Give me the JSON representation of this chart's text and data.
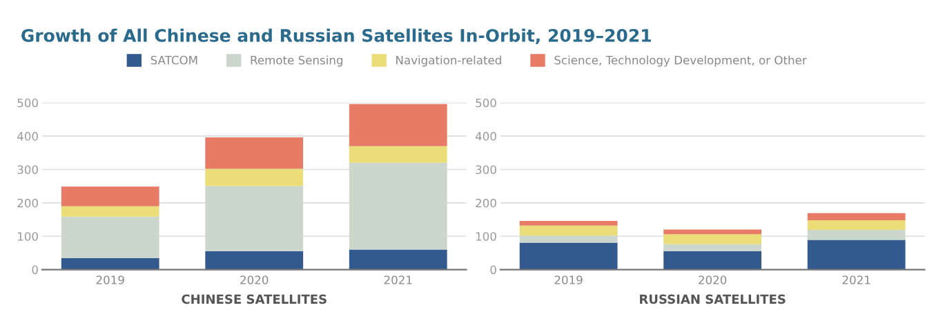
{
  "chart_data": [
    {
      "type": "bar",
      "title": "Growth of All Chinese and Russian Satellites In-Orbit, 2019–2021",
      "xlabel": "CHINESE SATELLITES",
      "stacked": true,
      "grid": "y",
      "legend": "top",
      "categories": [
        "2019",
        "2020",
        "2021"
      ],
      "ylim": [
        0,
        500
      ],
      "yticks": [
        0,
        100,
        200,
        300,
        400,
        500
      ],
      "series": [
        {
          "name": "SATCOM",
          "color": "#325a8f",
          "values": [
            35,
            55,
            60
          ]
        },
        {
          "name": "Remote Sensing",
          "color": "#cbd6cc",
          "values": [
            124,
            196,
            260
          ]
        },
        {
          "name": "Navigation-related",
          "color": "#ebdd77",
          "values": [
            31,
            51,
            50
          ]
        },
        {
          "name": "Science, Technology Development, or Other",
          "color": "#e87b65",
          "values": [
            59,
            94,
            126
          ]
        }
      ]
    },
    {
      "type": "bar",
      "xlabel": "RUSSIAN SATELLITES",
      "stacked": true,
      "grid": "y",
      "categories": [
        "2019",
        "2020",
        "2021"
      ],
      "ylim": [
        0,
        500
      ],
      "yticks": [
        0,
        100,
        200,
        300,
        400,
        500
      ],
      "series": [
        {
          "color": "#325a8f",
          "values": [
            81,
            55,
            89
          ]
        },
        {
          "color": "#cbd6cc",
          "values": [
            21,
            21,
            30
          ]
        },
        {
          "color": "#ebdd77",
          "values": [
            30,
            30,
            29
          ]
        },
        {
          "color": "#e87b65",
          "values": [
            14,
            14,
            21
          ]
        }
      ]
    }
  ]
}
